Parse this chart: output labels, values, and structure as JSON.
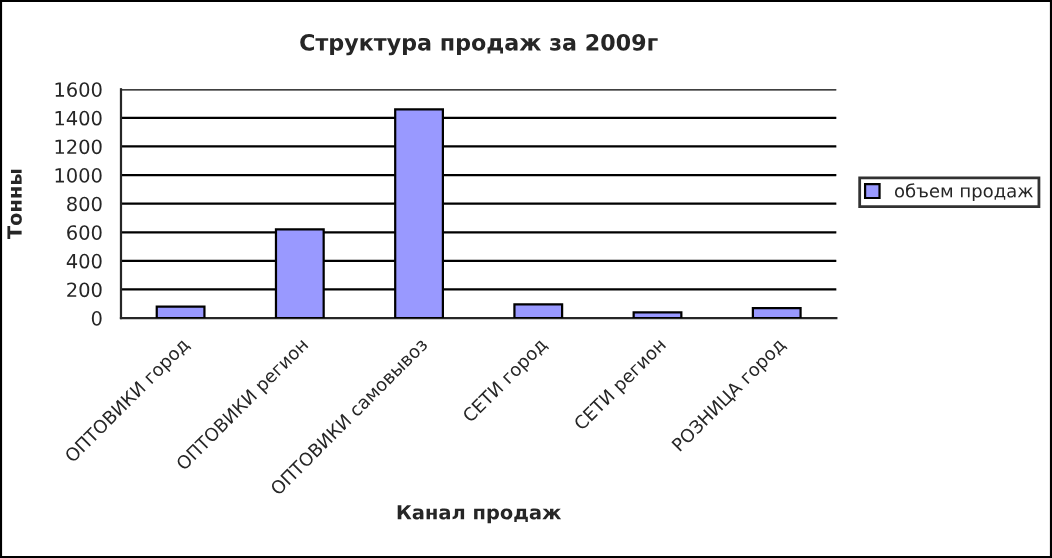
{
  "chart_data": {
    "type": "bar",
    "title": "Структура продаж за 2009г",
    "xlabel": "Канал продаж",
    "ylabel": "Тонны",
    "categories": [
      "ОПТОВИКИ город",
      "ОПТОВИКИ регион",
      "ОПТОВИКИ самовывоз",
      "СЕТИ город",
      "СЕТИ регион",
      "РОЗНИЦА город"
    ],
    "series": [
      {
        "name": "объем продаж",
        "color": "#9999ff",
        "values": [
          80,
          620,
          1460,
          95,
          40,
          70
        ]
      }
    ],
    "ylim": [
      0,
      1600
    ],
    "yticks": [
      0,
      200,
      400,
      600,
      800,
      1000,
      1200,
      1400,
      1600
    ],
    "grid": "y",
    "legend": "right"
  }
}
